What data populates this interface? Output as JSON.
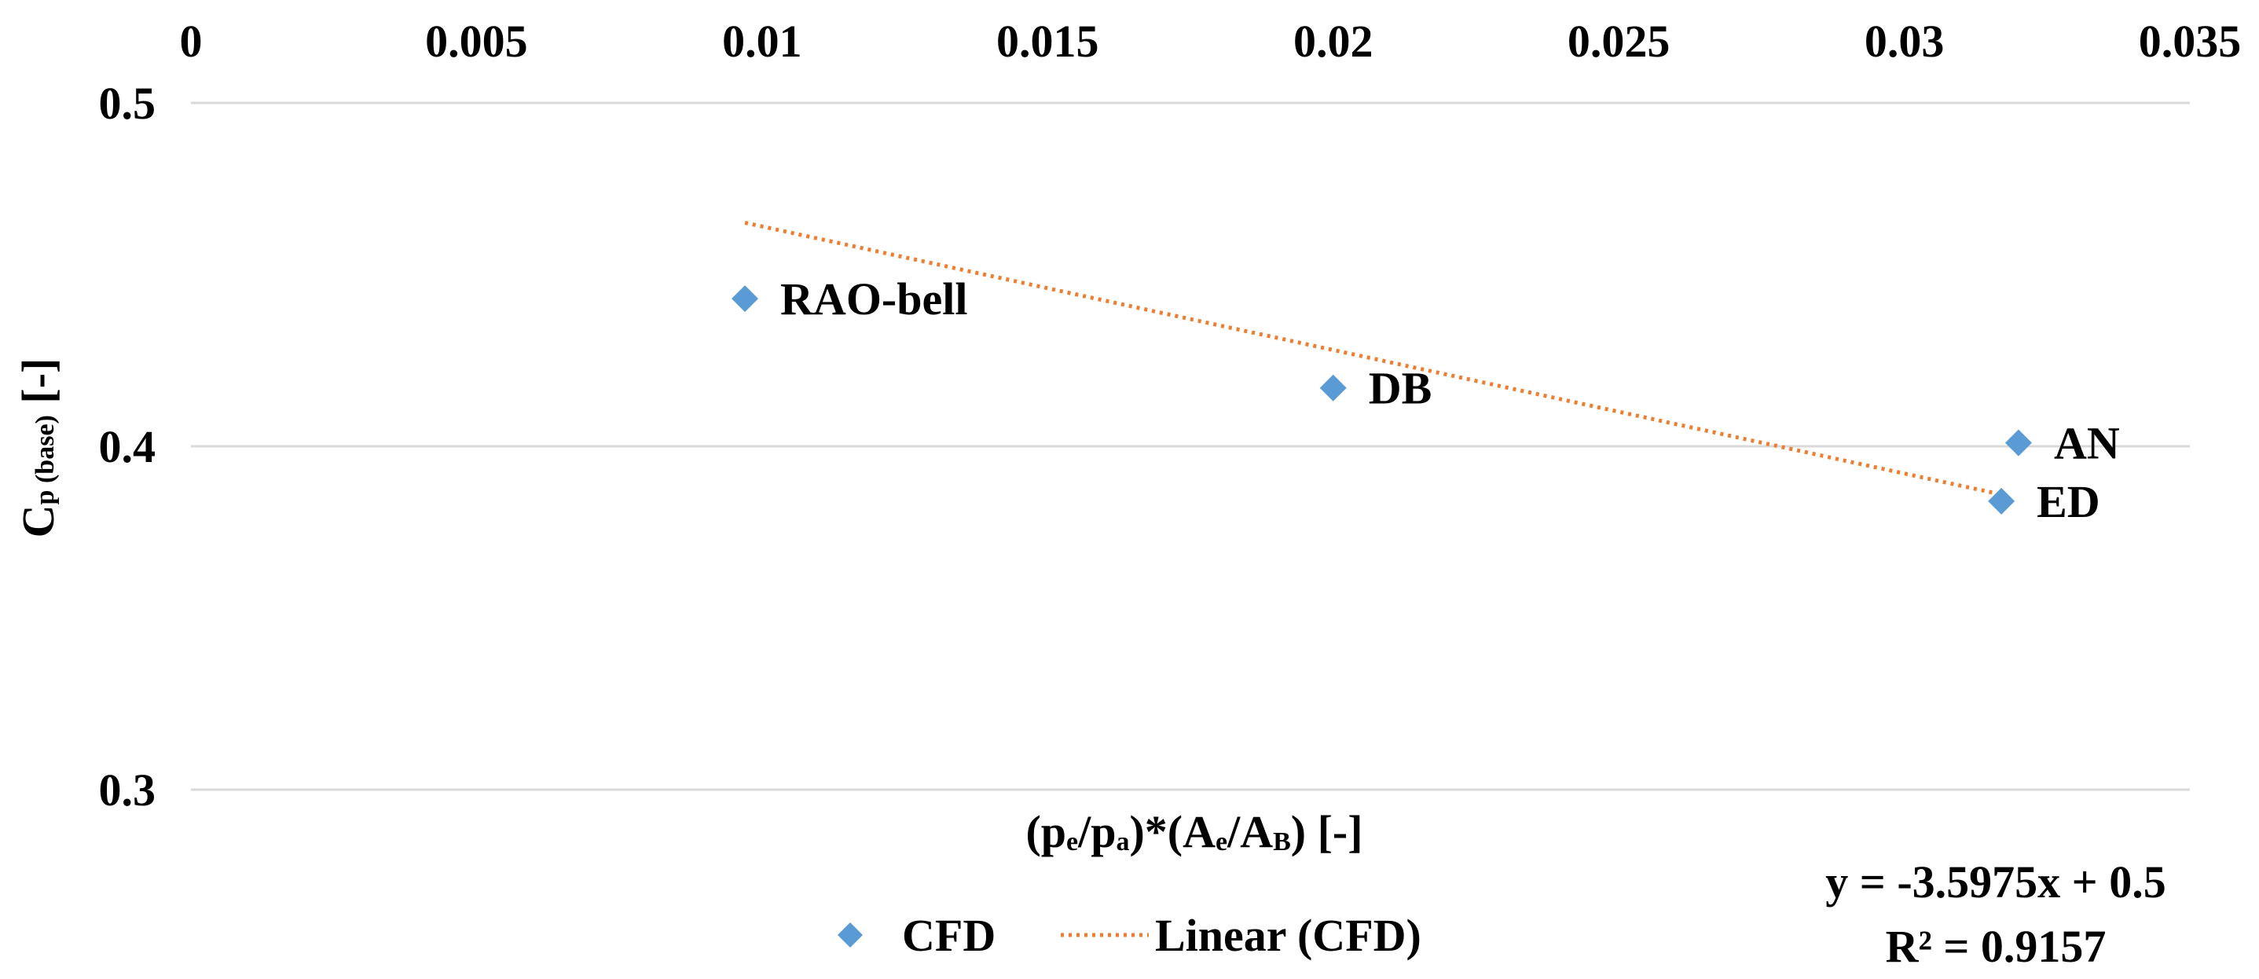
{
  "chart_data": {
    "type": "scatter",
    "title": "",
    "xlabel": {
      "text": "(pe/pa)*(Ae/AB) [-]",
      "parts": [
        "(p",
        "e",
        "/p",
        "a",
        ")*(A",
        "e",
        "/A",
        "B",
        ") [-]"
      ]
    },
    "ylabel": {
      "text": "Cp (base) [-]",
      "parts": [
        "C",
        "p",
        " (base)",
        " [-]"
      ]
    },
    "xlim": [
      0,
      0.035
    ],
    "ylim": [
      0.3,
      0.5
    ],
    "x_ticks": [
      "0",
      "0.005",
      "0.01",
      "0.015",
      "0.02",
      "0.025",
      "0.03",
      "0.035"
    ],
    "x_tick_values": [
      0,
      0.005,
      0.01,
      0.015,
      0.02,
      0.025,
      0.03,
      0.035
    ],
    "y_ticks": [
      "0.5",
      "0.4",
      "0.3"
    ],
    "y_tick_values": [
      0.5,
      0.4,
      0.3
    ],
    "x_axis_position": "top",
    "grid": true,
    "series": [
      {
        "name": "CFD",
        "marker": "diamond",
        "color": "#5b9bd5",
        "points": [
          {
            "label": "RAO-bell",
            "x": 0.0097,
            "y": 0.443
          },
          {
            "label": "DB",
            "x": 0.02,
            "y": 0.417
          },
          {
            "label": "AN",
            "x": 0.032,
            "y": 0.401
          },
          {
            "label": "ED",
            "x": 0.0317,
            "y": 0.384
          }
        ]
      }
    ],
    "trendline": {
      "name": "Linear (CFD)",
      "type": "linear",
      "style": "dotted",
      "color": "#ed7d31",
      "slope": -3.5975,
      "intercept": 0.5,
      "x_range": [
        0.0097,
        0.0317
      ],
      "equation": "y = -3.5975x + 0.5",
      "r_squared": "R² = 0.9157"
    },
    "legend": {
      "position": "bottom",
      "entries": [
        "CFD",
        "Linear (CFD)"
      ]
    }
  }
}
